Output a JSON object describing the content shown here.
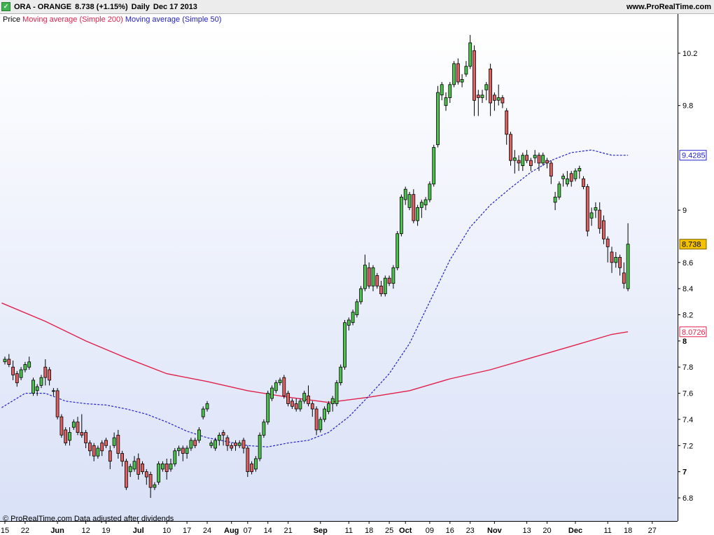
{
  "header": {
    "checkbox": "✓",
    "symbol": "ORA - ORANGE",
    "quote": "8.738 (+1.15%)",
    "period": "Daily",
    "date": "Dec 17 2013",
    "site": "www.ProRealTime.com"
  },
  "legend": {
    "price": "Price",
    "ma200": "Moving average (Simple 200)",
    "ma50": "Moving average (Simple 50)"
  },
  "footer": "© ProRealTime.com  Data adjusted after dividends",
  "colors": {
    "up": "#4cc44c",
    "down": "#e06060",
    "wick": "#000000",
    "ma200": "#e0204a",
    "ma50": "#2222cc",
    "bg_top": "#ffffff",
    "bg_bottom": "#d9e1f7",
    "last_price_bg": "#f2c200"
  },
  "chart_data": {
    "type": "candlestick",
    "y_axis": {
      "ticks": [
        6.8,
        7,
        7.2,
        7.4,
        7.6,
        7.8,
        8,
        8.2,
        8.4,
        8.6,
        9,
        9.8,
        10.2
      ],
      "tick_labels": [
        "6.8",
        "7",
        "7.2",
        "7.4",
        "7.6",
        "7.8",
        "8",
        "8.2",
        "8.4",
        "8.6",
        "9",
        "9.8",
        "10.2"
      ],
      "bold_ticks": [
        "7",
        "8"
      ],
      "min": 6.68,
      "max": 10.5
    },
    "x_axis": {
      "labels": [
        {
          "text": "15",
          "index": 0
        },
        {
          "text": "22",
          "index": 5
        },
        {
          "text": "Jun",
          "index": 13,
          "bold": true
        },
        {
          "text": "12",
          "index": 20
        },
        {
          "text": "19",
          "index": 25
        },
        {
          "text": "Jul",
          "index": 33,
          "bold": true
        },
        {
          "text": "10",
          "index": 40
        },
        {
          "text": "17",
          "index": 45
        },
        {
          "text": "24",
          "index": 50
        },
        {
          "text": "Aug",
          "index": 56,
          "bold": true
        },
        {
          "text": "07",
          "index": 60
        },
        {
          "text": "14",
          "index": 65
        },
        {
          "text": "21",
          "index": 70
        },
        {
          "text": "Sep",
          "index": 78,
          "bold": true
        },
        {
          "text": "11",
          "index": 85
        },
        {
          "text": "18",
          "index": 90
        },
        {
          "text": "25",
          "index": 95
        },
        {
          "text": "Oct",
          "index": 99,
          "bold": true
        },
        {
          "text": "09",
          "index": 105
        },
        {
          "text": "16",
          "index": 110
        },
        {
          "text": "23",
          "index": 115
        },
        {
          "text": "Nov",
          "index": 121,
          "bold": true
        },
        {
          "text": "13",
          "index": 129
        },
        {
          "text": "20",
          "index": 134
        },
        {
          "text": "Dec",
          "index": 141,
          "bold": true
        },
        {
          "text": "11",
          "index": 149
        },
        {
          "text": "18",
          "index": 154
        },
        {
          "text": "27",
          "index": 160
        }
      ]
    },
    "series": [
      {
        "name": "Moving average (Simple 200)",
        "type": "line",
        "value_label": "8.0726",
        "label_color": "#e0204a",
        "points": [
          [
            -0.8,
            8.29
          ],
          [
            10,
            8.15
          ],
          [
            20,
            8.0
          ],
          [
            30,
            7.87
          ],
          [
            40,
            7.75
          ],
          [
            50,
            7.69
          ],
          [
            60,
            7.62
          ],
          [
            70,
            7.57
          ],
          [
            80,
            7.53
          ],
          [
            90,
            7.57
          ],
          [
            100,
            7.62
          ],
          [
            110,
            7.71
          ],
          [
            120,
            7.78
          ],
          [
            130,
            7.87
          ],
          [
            140,
            7.96
          ],
          [
            150,
            8.05
          ],
          [
            154,
            8.07
          ]
        ]
      },
      {
        "name": "Moving average (Simple 50)",
        "type": "line",
        "value_label": "9.4285",
        "label_color": "#2222cc",
        "points": [
          [
            -0.8,
            7.49
          ],
          [
            5,
            7.6
          ],
          [
            10,
            7.6
          ],
          [
            15,
            7.54
          ],
          [
            20,
            7.52
          ],
          [
            25,
            7.51
          ],
          [
            30,
            7.48
          ],
          [
            35,
            7.44
          ],
          [
            40,
            7.38
          ],
          [
            45,
            7.31
          ],
          [
            50,
            7.26
          ],
          [
            55,
            7.23
          ],
          [
            60,
            7.2
          ],
          [
            65,
            7.19
          ],
          [
            70,
            7.22
          ],
          [
            75,
            7.24
          ],
          [
            80,
            7.3
          ],
          [
            85,
            7.42
          ],
          [
            90,
            7.58
          ],
          [
            95,
            7.75
          ],
          [
            100,
            7.98
          ],
          [
            105,
            8.3
          ],
          [
            110,
            8.62
          ],
          [
            115,
            8.87
          ],
          [
            120,
            9.04
          ],
          [
            125,
            9.17
          ],
          [
            130,
            9.29
          ],
          [
            135,
            9.38
          ],
          [
            140,
            9.44
          ],
          [
            145,
            9.46
          ],
          [
            150,
            9.42
          ],
          [
            154,
            9.42
          ]
        ]
      }
    ],
    "ohlc": [
      [
        7.84,
        7.86,
        7.88,
        7.82
      ],
      [
        7.86,
        7.82,
        7.9,
        7.8
      ],
      [
        7.8,
        7.74,
        7.85,
        7.7
      ],
      [
        7.75,
        7.68,
        7.77,
        7.65
      ],
      [
        7.72,
        7.78,
        7.8,
        7.7
      ],
      [
        7.78,
        7.82,
        7.84,
        7.76
      ],
      [
        7.8,
        7.84,
        7.88,
        7.78
      ],
      [
        7.6,
        7.7,
        7.72,
        7.58
      ],
      [
        7.62,
        7.65,
        7.67,
        7.58
      ],
      [
        7.66,
        7.72,
        7.74,
        7.64
      ],
      [
        7.8,
        7.72,
        7.86,
        7.66
      ],
      [
        7.78,
        7.7,
        7.8,
        7.66
      ],
      [
        7.62,
        7.62,
        7.64,
        7.58
      ],
      [
        7.62,
        7.42,
        7.64,
        7.4
      ],
      [
        7.42,
        7.28,
        7.44,
        7.26
      ],
      [
        7.32,
        7.22,
        7.34,
        7.2
      ],
      [
        7.24,
        7.3,
        7.34,
        7.2
      ],
      [
        7.34,
        7.38,
        7.4,
        7.32
      ],
      [
        7.38,
        7.3,
        7.42,
        7.28
      ],
      [
        7.3,
        7.28,
        7.44,
        7.26
      ],
      [
        7.3,
        7.22,
        7.32,
        7.18
      ],
      [
        7.22,
        7.16,
        7.24,
        7.12
      ],
      [
        7.2,
        7.12,
        7.22,
        7.08
      ],
      [
        7.12,
        7.18,
        7.2,
        7.1
      ],
      [
        7.22,
        7.16,
        7.24,
        7.12
      ],
      [
        7.24,
        7.2,
        7.26,
        7.18
      ],
      [
        7.16,
        7.08,
        7.2,
        7.02
      ],
      [
        7.2,
        7.26,
        7.3,
        7.18
      ],
      [
        7.28,
        7.14,
        7.32,
        7.1
      ],
      [
        7.14,
        7.08,
        7.16,
        7.04
      ],
      [
        7.08,
        6.88,
        7.1,
        6.86
      ],
      [
        7.0,
        7.04,
        7.06,
        6.96
      ],
      [
        7.02,
        7.08,
        7.12,
        7.0
      ],
      [
        7.1,
        6.98,
        7.14,
        6.94
      ],
      [
        7.06,
        7.0,
        7.08,
        6.98
      ],
      [
        7.0,
        6.96,
        7.02,
        6.9
      ],
      [
        6.98,
        6.88,
        7.0,
        6.8
      ],
      [
        6.88,
        6.9,
        6.92,
        6.86
      ],
      [
        6.92,
        7.06,
        7.08,
        6.9
      ],
      [
        7.02,
        7.06,
        7.08,
        7.0
      ],
      [
        7.06,
        7.0,
        7.1,
        6.94
      ],
      [
        7.02,
        7.06,
        7.1,
        7.0
      ],
      [
        7.06,
        7.16,
        7.18,
        7.04
      ],
      [
        7.16,
        7.18,
        7.2,
        7.12
      ],
      [
        7.18,
        7.14,
        7.2,
        7.08
      ],
      [
        7.14,
        7.18,
        7.2,
        7.1
      ],
      [
        7.18,
        7.24,
        7.26,
        7.16
      ],
      [
        7.24,
        7.2,
        7.26,
        7.18
      ],
      [
        7.24,
        7.32,
        7.34,
        7.22
      ],
      [
        7.42,
        7.48,
        7.5,
        7.4
      ],
      [
        7.48,
        7.52,
        7.54,
        7.46
      ],
      [
        7.2,
        7.22,
        7.24,
        7.18
      ],
      [
        7.18,
        7.24,
        7.26,
        7.16
      ],
      [
        7.24,
        7.28,
        7.3,
        7.2
      ],
      [
        7.3,
        7.28,
        7.32,
        7.2
      ],
      [
        7.26,
        7.2,
        7.28,
        7.16
      ],
      [
        7.2,
        7.18,
        7.22,
        7.16
      ],
      [
        7.22,
        7.2,
        7.24,
        7.16
      ],
      [
        7.2,
        7.22,
        7.24,
        7.18
      ],
      [
        7.24,
        7.18,
        7.26,
        7.14
      ],
      [
        7.18,
        7.0,
        7.2,
        6.96
      ],
      [
        7.06,
        7.0,
        7.08,
        6.98
      ],
      [
        7.02,
        7.1,
        7.12,
        7.0
      ],
      [
        7.1,
        7.28,
        7.3,
        7.08
      ],
      [
        7.28,
        7.38,
        7.4,
        7.26
      ],
      [
        7.38,
        7.6,
        7.62,
        7.36
      ],
      [
        7.56,
        7.64,
        7.66,
        7.54
      ],
      [
        7.62,
        7.68,
        7.7,
        7.6
      ],
      [
        7.68,
        7.7,
        7.72,
        7.66
      ],
      [
        7.72,
        7.58,
        7.74,
        7.56
      ],
      [
        7.6,
        7.52,
        7.62,
        7.5
      ],
      [
        7.54,
        7.5,
        7.56,
        7.48
      ],
      [
        7.52,
        7.48,
        7.56,
        7.46
      ],
      [
        7.48,
        7.54,
        7.56,
        7.46
      ],
      [
        7.54,
        7.6,
        7.62,
        7.52
      ],
      [
        7.58,
        7.52,
        7.66,
        7.5
      ],
      [
        7.52,
        7.48,
        7.54,
        7.42
      ],
      [
        7.48,
        7.32,
        7.5,
        7.28
      ],
      [
        7.32,
        7.4,
        7.42,
        7.3
      ],
      [
        7.4,
        7.48,
        7.5,
        7.38
      ],
      [
        7.46,
        7.52,
        7.54,
        7.44
      ],
      [
        7.52,
        7.56,
        7.58,
        7.46
      ],
      [
        7.52,
        7.68,
        7.7,
        7.5
      ],
      [
        7.68,
        7.8,
        7.82,
        7.66
      ],
      [
        7.8,
        8.14,
        8.16,
        7.78
      ],
      [
        8.12,
        8.16,
        8.18,
        8.08
      ],
      [
        8.14,
        8.22,
        8.24,
        8.12
      ],
      [
        8.2,
        8.3,
        8.32,
        8.18
      ],
      [
        8.3,
        8.4,
        8.42,
        8.28
      ],
      [
        8.4,
        8.58,
        8.66,
        8.38
      ],
      [
        8.56,
        8.42,
        8.6,
        8.4
      ],
      [
        8.42,
        8.56,
        8.58,
        8.38
      ],
      [
        8.5,
        8.42,
        8.52,
        8.4
      ],
      [
        8.42,
        8.36,
        8.46,
        8.34
      ],
      [
        8.36,
        8.48,
        8.5,
        8.34
      ],
      [
        8.48,
        8.44,
        8.5,
        8.42
      ],
      [
        8.44,
        8.56,
        8.58,
        8.4
      ],
      [
        8.56,
        8.82,
        8.84,
        8.54
      ],
      [
        8.82,
        9.1,
        9.12,
        8.8
      ],
      [
        9.08,
        9.16,
        9.18,
        9.04
      ],
      [
        9.02,
        9.12,
        9.14,
        9.0
      ],
      [
        9.12,
        8.92,
        9.16,
        8.9
      ],
      [
        8.92,
        9.02,
        9.04,
        8.88
      ],
      [
        9.02,
        9.06,
        9.08,
        8.94
      ],
      [
        9.04,
        9.08,
        9.1,
        9.0
      ],
      [
        9.08,
        9.2,
        9.22,
        9.06
      ],
      [
        9.2,
        9.48,
        9.5,
        9.18
      ],
      [
        9.5,
        9.9,
        9.95,
        9.48
      ],
      [
        9.88,
        9.96,
        9.98,
        9.84
      ],
      [
        9.8,
        9.86,
        9.9,
        9.76
      ],
      [
        9.86,
        9.96,
        9.98,
        9.82
      ],
      [
        9.96,
        10.12,
        10.14,
        9.94
      ],
      [
        10.12,
        9.98,
        10.16,
        9.96
      ],
      [
        9.98,
        10.0,
        10.04,
        9.94
      ],
      [
        10.04,
        10.1,
        10.14,
        10.02
      ],
      [
        10.1,
        10.28,
        10.34,
        10.08
      ],
      [
        10.22,
        9.84,
        10.26,
        9.72
      ],
      [
        9.88,
        9.86,
        9.92,
        9.72
      ],
      [
        9.86,
        9.88,
        9.92,
        9.82
      ],
      [
        9.92,
        9.96,
        9.98,
        9.84
      ],
      [
        10.08,
        9.82,
        10.12,
        9.72
      ],
      [
        9.88,
        9.84,
        9.9,
        9.76
      ],
      [
        9.84,
        9.86,
        9.96,
        9.8
      ],
      [
        9.86,
        9.82,
        9.88,
        9.78
      ],
      [
        9.76,
        9.58,
        9.78,
        9.5
      ],
      [
        9.58,
        9.38,
        9.6,
        9.34
      ],
      [
        9.38,
        9.4,
        9.46,
        9.28
      ],
      [
        9.38,
        9.36,
        9.42,
        9.3
      ],
      [
        9.34,
        9.42,
        9.44,
        9.3
      ],
      [
        9.42,
        9.38,
        9.46,
        9.36
      ],
      [
        9.38,
        9.34,
        9.4,
        9.3
      ],
      [
        9.4,
        9.42,
        9.46,
        9.36
      ],
      [
        9.42,
        9.36,
        9.44,
        9.3
      ],
      [
        9.36,
        9.42,
        9.44,
        9.34
      ],
      [
        9.38,
        9.36,
        9.4,
        9.32
      ],
      [
        9.36,
        9.26,
        9.38,
        9.2
      ],
      [
        9.06,
        9.1,
        9.14,
        9.0
      ],
      [
        9.1,
        9.2,
        9.22,
        9.08
      ],
      [
        9.24,
        9.26,
        9.28,
        9.18
      ],
      [
        9.2,
        9.24,
        9.3,
        9.18
      ],
      [
        9.28,
        9.22,
        9.3,
        9.18
      ],
      [
        9.24,
        9.3,
        9.32,
        9.22
      ],
      [
        9.3,
        9.32,
        9.34,
        9.24
      ],
      [
        9.24,
        9.18,
        9.26,
        9.16
      ],
      [
        9.18,
        8.84,
        9.2,
        8.8
      ],
      [
        8.94,
        8.98,
        9.02,
        8.88
      ],
      [
        9.0,
        9.02,
        9.06,
        8.94
      ],
      [
        9.0,
        8.86,
        9.06,
        8.82
      ],
      [
        8.92,
        8.78,
        8.96,
        8.74
      ],
      [
        8.78,
        8.72,
        8.8,
        8.6
      ],
      [
        8.68,
        8.6,
        8.72,
        8.52
      ],
      [
        8.6,
        8.64,
        8.68,
        8.56
      ],
      [
        8.64,
        8.56,
        8.66,
        8.5
      ],
      [
        8.52,
        8.44,
        8.6,
        8.4
      ],
      [
        8.4,
        8.74,
        8.9,
        8.38
      ]
    ],
    "last_price_label": "8.738"
  }
}
